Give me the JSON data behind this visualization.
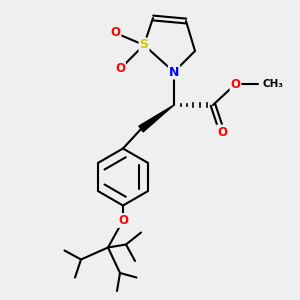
{
  "bg_color": "#efefef",
  "atom_colors": {
    "S": "#cccc00",
    "N": "#0000ff",
    "O": "#ff0000",
    "C": "#000000"
  },
  "bond_color": "#000000",
  "bond_width": 1.5
}
